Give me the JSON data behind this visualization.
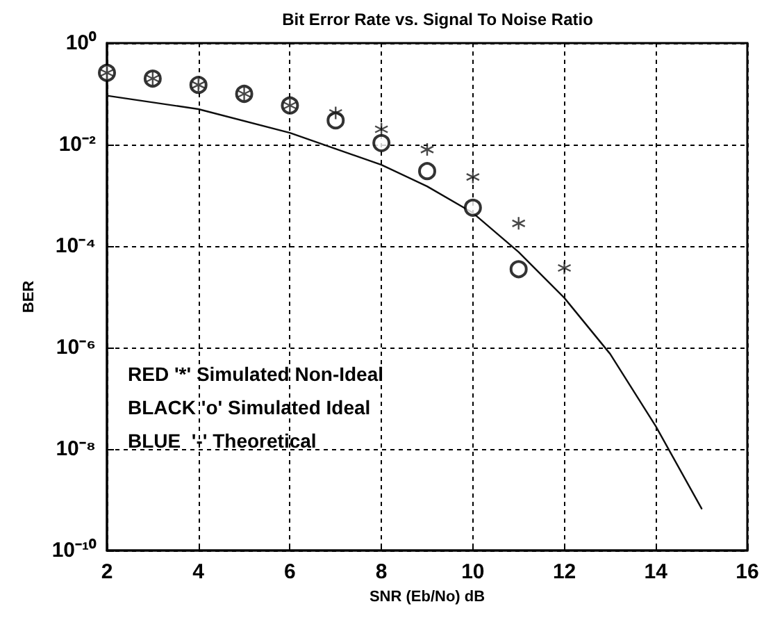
{
  "chart_data": {
    "type": "scatter",
    "title": "Bit Error Rate vs. Signal To Noise Ratio",
    "xlabel": "SNR (Eb/No) dB",
    "ylabel": "BER",
    "annotations": [
      "RED '*' Simulated Non-Ideal",
      "BLACK 'o' Simulated Ideal",
      "BLUE  '-' Theoretical"
    ],
    "series": [
      {
        "marker": "cross",
        "color": "#1a1a1a",
        "x": [
          2,
          3,
          4,
          5,
          6,
          7,
          8,
          9,
          10,
          11,
          12
        ],
        "values": [
          0.26,
          0.2,
          0.15,
          0.1,
          0.059,
          0.042,
          0.02,
          0.008,
          0.0023,
          0.00028,
          3.7e-05
        ]
      },
      {
        "marker": "circle",
        "color": "#000000",
        "x": [
          2,
          3,
          4,
          5,
          6,
          7,
          8,
          9,
          10,
          11
        ],
        "values": [
          0.26,
          0.2,
          0.15,
          0.1,
          0.059,
          0.03,
          0.0107,
          0.003,
          0.00057,
          3.5e-05
        ]
      },
      {
        "type": "line",
        "marker": "none",
        "line_style": "solid",
        "color": "#0d0d0d",
        "x": [
          2,
          4,
          6,
          8,
          9,
          10,
          11,
          12,
          13,
          14,
          15
        ],
        "values": [
          0.092,
          0.05,
          0.017,
          0.004,
          0.0015,
          0.00045,
          7.6e-05,
          9.5e-06,
          7.5e-07,
          2.8e-08,
          6.7e-10
        ]
      }
    ],
    "log": "y",
    "grid": true,
    "line_style": "dashed",
    "xlim": [
      2,
      16
    ],
    "xticks": [
      2,
      4,
      6,
      8,
      10,
      12,
      14,
      16
    ],
    "ylim": [
      1e-10,
      1
    ],
    "yticks": [
      {
        "value": 1e-10,
        "label": "10⁻¹⁰"
      },
      {
        "value": 1e-08,
        "label": "10⁻⁸"
      },
      {
        "value": 1e-06,
        "label": "10⁻⁶"
      },
      {
        "value": 0.0001,
        "label": "10⁻⁴"
      },
      {
        "value": 0.01,
        "label": "10⁻²"
      },
      {
        "value": 1,
        "label": "10⁰"
      }
    ]
  }
}
